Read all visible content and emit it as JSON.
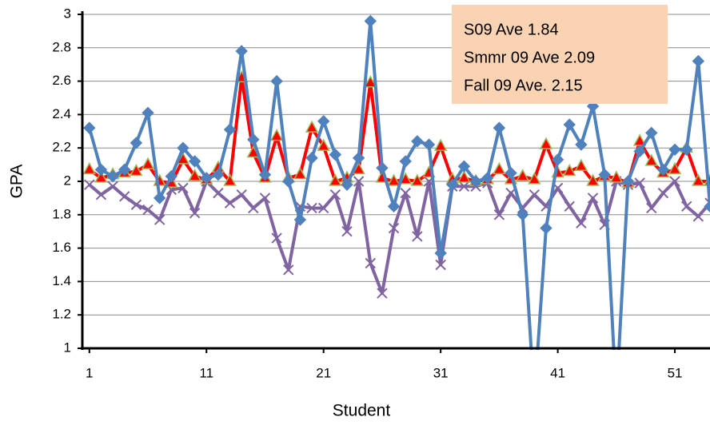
{
  "chart_data": {
    "type": "line",
    "x_label": "Student",
    "y_label": "GPA",
    "x": [
      1,
      2,
      3,
      4,
      5,
      6,
      7,
      8,
      9,
      10,
      11,
      12,
      13,
      14,
      15,
      16,
      17,
      18,
      19,
      20,
      21,
      22,
      23,
      24,
      25,
      26,
      27,
      28,
      29,
      30,
      31,
      32,
      33,
      34,
      35,
      36,
      37,
      38,
      39,
      40,
      41,
      42,
      43,
      44,
      45,
      46,
      47,
      48,
      49,
      50,
      51,
      52,
      53,
      54
    ],
    "xlim": [
      0.4,
      54
    ],
    "xticks": [
      1,
      11,
      21,
      31,
      41,
      51
    ],
    "ylim": [
      1,
      3
    ],
    "yticks": [
      1,
      1.2,
      1.4,
      1.6,
      1.8,
      2,
      2.2,
      2.4,
      2.6,
      2.8,
      3
    ],
    "grid": true,
    "series": [
      {
        "color": "#8064a2",
        "marker": "x",
        "values": [
          1.98,
          1.92,
          1.97,
          1.91,
          1.86,
          1.83,
          1.77,
          1.95,
          1.96,
          1.81,
          2.0,
          1.93,
          1.87,
          1.92,
          1.84,
          1.9,
          1.66,
          1.47,
          1.85,
          1.84,
          1.84,
          1.92,
          1.7,
          2.0,
          1.51,
          1.33,
          1.72,
          1.93,
          1.67,
          2.0,
          1.5,
          1.97,
          1.97,
          1.97,
          1.99,
          1.8,
          1.93,
          1.84,
          1.92,
          1.85,
          1.96,
          1.85,
          1.75,
          1.9,
          1.74,
          2.0,
          1.98,
          1.99,
          1.84,
          1.93,
          2.0,
          1.85,
          1.79,
          1.87
        ]
      },
      {
        "color": "#ff0000",
        "marker": "triangle",
        "values": [
          2.07,
          2.02,
          2.04,
          2.05,
          2.06,
          2.1,
          2.0,
          1.99,
          2.13,
          2.03,
          2.01,
          2.08,
          2.0,
          2.62,
          2.17,
          2.02,
          2.27,
          2.02,
          2.04,
          2.32,
          2.21,
          2.0,
          2.02,
          2.07,
          2.59,
          2.02,
          2.0,
          2.01,
          2.0,
          2.05,
          2.21,
          2.01,
          2.02,
          2.0,
          2.01,
          2.07,
          2.01,
          2.03,
          2.01,
          2.22,
          2.05,
          2.06,
          2.09,
          2.0,
          2.03,
          2.02,
          1.99,
          2.24,
          2.12,
          2.05,
          2.07,
          2.2,
          2.0,
          2.0
        ]
      },
      {
        "color": "#4f81bd",
        "marker": "diamond",
        "values": [
          2.32,
          2.07,
          2.03,
          2.07,
          2.23,
          2.41,
          1.9,
          2.03,
          2.2,
          2.12,
          2.02,
          2.04,
          2.31,
          2.78,
          2.25,
          2.04,
          2.6,
          2.0,
          1.77,
          2.14,
          2.36,
          2.16,
          1.98,
          2.14,
          2.96,
          2.08,
          1.85,
          2.12,
          2.24,
          2.22,
          1.57,
          1.98,
          2.09,
          2.0,
          2.02,
          2.32,
          2.05,
          1.8,
          0.7,
          1.72,
          2.13,
          2.34,
          2.22,
          2.45,
          2.04,
          0.7,
          2.0,
          2.18,
          2.29,
          2.07,
          2.19,
          2.19,
          2.72,
          1.85
        ]
      }
    ],
    "annotations": [
      {
        "text": "S09 Ave 1.84",
        "color": "#7030a0"
      },
      {
        "text": "Smmr 09 Ave 2.09",
        "color": "#ff0000"
      },
      {
        "text": "Fall 09 Ave. 2.15",
        "color": "#2e75b6"
      }
    ],
    "annotation_box_color": "#fad4b2"
  }
}
